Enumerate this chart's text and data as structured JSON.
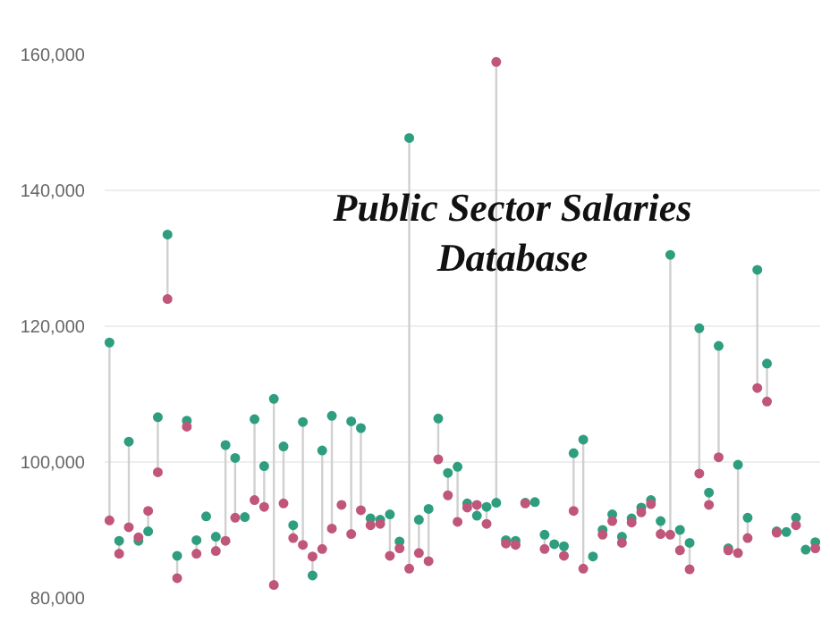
{
  "chart_data": {
    "type": "scatter",
    "title": "Public Sector Salaries Database",
    "categories": [
      null,
      null,
      null,
      null,
      null,
      null,
      null,
      null,
      null,
      null,
      null,
      null,
      null,
      null,
      null,
      null,
      null,
      null,
      null,
      null,
      null,
      null,
      null,
      null,
      null,
      null,
      null,
      null,
      null,
      null,
      null,
      null,
      null,
      null,
      null,
      null,
      null,
      null,
      null,
      null,
      null,
      null,
      null,
      null,
      null,
      null,
      null,
      null,
      null,
      null,
      null,
      null,
      null,
      null,
      null,
      null,
      null,
      null,
      null,
      null,
      null,
      null,
      null,
      null,
      null,
      null,
      null,
      null,
      null,
      null,
      null,
      null,
      null,
      null
    ],
    "series": [
      {
        "color": "#2e9e7f",
        "values": [
          117600,
          88400,
          103000,
          88400,
          89800,
          106600,
          133500,
          86200,
          106100,
          88500,
          92000,
          89000,
          102500,
          100600,
          91900,
          106300,
          99400,
          109300,
          102300,
          90700,
          105900,
          83300,
          101700,
          106800,
          null,
          106000,
          105000,
          91700,
          91500,
          92300,
          88300,
          147700,
          91500,
          93100,
          106400,
          98400,
          99300,
          93900,
          92100,
          93400,
          94000,
          88500,
          88400,
          94000,
          94100,
          89300,
          87900,
          87600,
          101300,
          103300,
          86100,
          90000,
          92300,
          89000,
          91700,
          93300,
          94400,
          91300,
          130500,
          90000,
          88100,
          119700,
          95500,
          117100,
          87300,
          99600,
          91800,
          128300,
          114500,
          89800,
          89700,
          91800,
          87100,
          88200
        ]
      },
      {
        "color": "#c0567a",
        "values": [
          91400,
          86500,
          90400,
          88900,
          92800,
          98500,
          124000,
          82900,
          105200,
          86500,
          null,
          86900,
          88400,
          91800,
          null,
          94400,
          93400,
          81900,
          93900,
          88800,
          87800,
          86100,
          87200,
          90200,
          93700,
          89400,
          92900,
          90700,
          90900,
          86200,
          87300,
          84300,
          86600,
          85400,
          100400,
          95100,
          91200,
          93300,
          93700,
          90900,
          158900,
          88000,
          87800,
          93900,
          null,
          87200,
          null,
          86200,
          92800,
          84300,
          null,
          89300,
          91300,
          88100,
          91100,
          92600,
          93800,
          89400,
          89300,
          87000,
          84200,
          98300,
          93700,
          100700,
          87000,
          86600,
          88800,
          110900,
          108900,
          89600,
          null,
          90700,
          null,
          87300
        ]
      }
    ],
    "ylim": [
      80000,
      160000
    ],
    "yticks": [
      {
        "value": 80000,
        "label": "80,000"
      },
      {
        "value": 100000,
        "label": "100,000"
      },
      {
        "value": 120000,
        "label": "120,000"
      },
      {
        "value": 140000,
        "label": "140,000"
      },
      {
        "value": 160000,
        "label": "160,000"
      }
    ],
    "grid": "y",
    "marker": "circle",
    "tick_labels": "y"
  }
}
